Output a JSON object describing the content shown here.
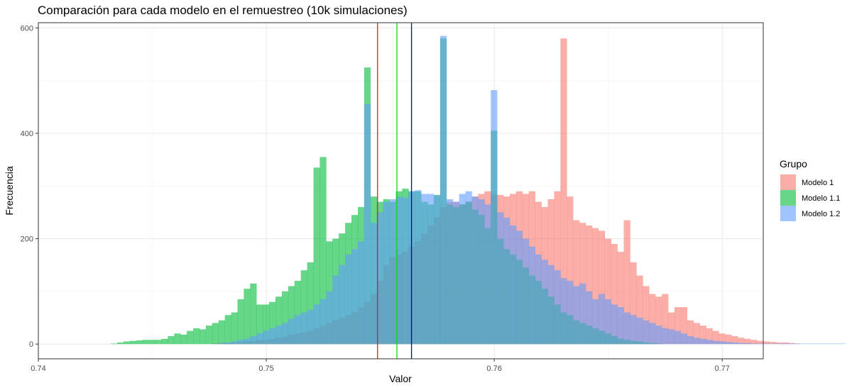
{
  "chart_data": {
    "type": "bar",
    "title": "Comparación para cada modelo en el remuestreo (10k simulaciones)",
    "xlabel": "Valor",
    "ylabel": "Frecuencia",
    "xlim": [
      0.74,
      0.7718
    ],
    "ylim": [
      -28,
      610
    ],
    "x_ticks": [
      0.74,
      0.75,
      0.76,
      0.77
    ],
    "x_tick_labels": [
      "0.74",
      "0.75",
      "0.76",
      "0.77"
    ],
    "y_ticks": [
      0,
      200,
      400,
      600
    ],
    "y_tick_labels": [
      "0",
      "200",
      "400",
      "600"
    ],
    "bin_width": 0.0002778,
    "grid": true,
    "legend": {
      "title": "Grupo",
      "position": "right",
      "entries": [
        "Modelo 1",
        "Modelo 1.1",
        "Modelo 1.2"
      ]
    },
    "bin_start": 0.74318,
    "series": [
      {
        "name": "Modelo 1",
        "color": "#F8766D",
        "values": [
          0,
          0,
          0,
          0,
          0,
          0,
          0,
          0,
          0,
          0,
          0,
          0,
          0,
          0,
          0,
          0,
          1,
          2,
          2,
          3,
          3,
          5,
          5,
          7,
          8,
          10,
          12,
          14,
          18,
          20,
          22,
          25,
          30,
          35,
          40,
          45,
          50,
          55,
          60,
          70,
          80,
          95,
          120,
          150,
          165,
          170,
          175,
          185,
          195,
          210,
          225,
          240,
          260,
          270,
          270,
          265,
          270,
          280,
          285,
          290,
          285,
          283,
          280,
          285,
          290,
          285,
          290,
          270,
          260,
          275,
          290,
          580,
          280,
          235,
          230,
          225,
          220,
          215,
          200,
          190,
          175,
          235,
          155,
          130,
          110,
          95,
          90,
          95,
          60,
          70,
          70,
          45,
          40,
          35,
          30,
          25,
          20,
          18,
          15,
          12,
          10,
          8,
          6,
          5,
          4,
          3,
          3,
          2,
          1,
          0,
          0,
          0,
          0,
          0,
          0,
          0
        ]
      },
      {
        "name": "Modelo 1.1",
        "color": "#00BA38",
        "values": [
          1,
          3,
          5,
          6,
          7,
          8,
          8,
          8,
          10,
          15,
          20,
          18,
          25,
          30,
          28,
          35,
          40,
          45,
          55,
          60,
          85,
          105,
          115,
          75,
          75,
          80,
          90,
          100,
          110,
          120,
          140,
          155,
          335,
          355,
          195,
          200,
          210,
          230,
          245,
          260,
          525,
          280,
          270,
          275,
          270,
          290,
          295,
          290,
          290,
          270,
          265,
          283,
          580,
          265,
          260,
          265,
          270,
          255,
          245,
          220,
          405,
          200,
          180,
          170,
          160,
          145,
          130,
          120,
          105,
          90,
          75,
          60,
          55,
          45,
          40,
          35,
          30,
          25,
          20,
          15,
          10,
          8,
          6,
          5,
          3,
          2,
          1,
          0,
          0,
          0,
          0,
          0,
          0,
          0,
          0,
          0,
          0,
          0,
          0,
          0,
          0,
          0,
          0,
          0,
          0,
          0,
          0,
          0,
          0,
          0,
          0,
          0,
          0,
          0,
          0,
          0
        ]
      },
      {
        "name": "Modelo 1.2",
        "color": "#619CFF",
        "values": [
          0,
          0,
          0,
          0,
          0,
          0,
          0,
          0,
          0,
          0,
          0,
          0,
          0,
          0,
          0,
          0,
          0,
          2,
          3,
          5,
          8,
          10,
          15,
          20,
          25,
          30,
          35,
          40,
          48,
          55,
          60,
          65,
          75,
          85,
          100,
          130,
          150,
          170,
          180,
          195,
          455,
          230,
          250,
          270,
          275,
          280,
          278,
          290,
          292,
          285,
          285,
          282,
          585,
          275,
          270,
          285,
          290,
          280,
          275,
          265,
          482,
          250,
          240,
          225,
          215,
          200,
          185,
          170,
          160,
          150,
          140,
          125,
          120,
          110,
          115,
          100,
          85,
          95,
          85,
          75,
          70,
          60,
          55,
          50,
          45,
          40,
          35,
          30,
          28,
          25,
          20,
          15,
          12,
          10,
          8,
          6,
          5,
          4,
          3,
          2,
          2,
          1,
          1,
          1,
          1,
          1,
          1,
          1,
          1,
          1,
          1,
          1,
          1,
          1,
          1,
          1
        ]
      }
    ],
    "vlines": [
      {
        "x": 0.75488,
        "color": "#E41A1C"
      },
      {
        "x": 0.75573,
        "color": "#00E000"
      },
      {
        "x": 0.75637,
        "color": "#0000CC"
      }
    ]
  }
}
